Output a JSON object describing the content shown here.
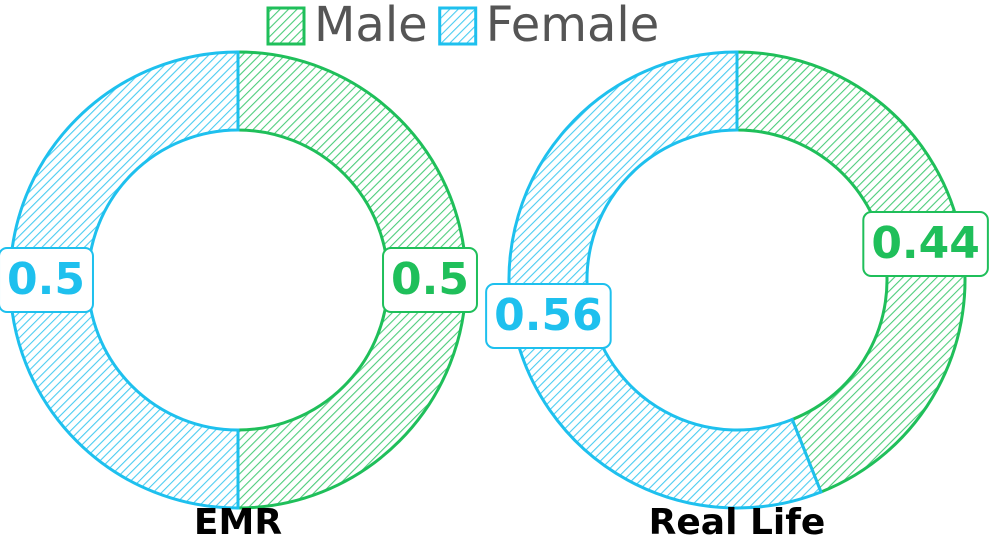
{
  "chart_data": [
    {
      "type": "pie",
      "title": "EMR",
      "categories": [
        "Male",
        "Female"
      ],
      "values": [
        0.5,
        0.5
      ],
      "colors": [
        "#1fbf5a",
        "#1ec0ee"
      ]
    },
    {
      "type": "pie",
      "title": "Real Life",
      "categories": [
        "Male",
        "Female"
      ],
      "values": [
        0.44,
        0.56
      ],
      "colors": [
        "#1fbf5a",
        "#1ec0ee"
      ]
    }
  ]
}
